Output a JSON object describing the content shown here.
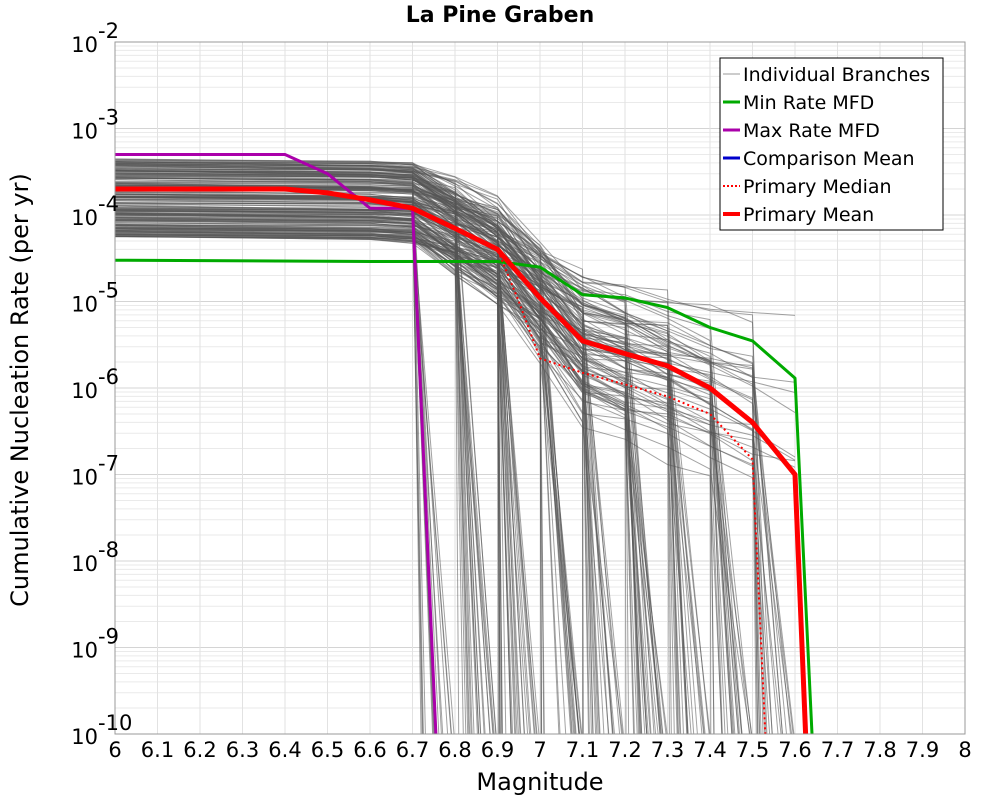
{
  "chart_data": {
    "type": "line",
    "title": "La Pine Graben",
    "xlabel": "Magnitude",
    "ylabel": "Cumulative Nucleation Rate (per yr)",
    "xlim": [
      6,
      8
    ],
    "ylim": [
      1e-10,
      0.01
    ],
    "yscale": "log",
    "grid": true,
    "legend_position": "top-right",
    "x_ticks": [
      "6",
      "6.1",
      "6.2",
      "6.3",
      "6.4",
      "6.5",
      "6.6",
      "6.7",
      "6.8",
      "6.9",
      "7",
      "7.1",
      "7.2",
      "7.3",
      "7.4",
      "7.5",
      "7.6",
      "7.7",
      "7.8",
      "7.9",
      "8"
    ],
    "y_ticks": [
      {
        "base": "10",
        "exp": "-10",
        "value": 1e-10
      },
      {
        "base": "10",
        "exp": "-9",
        "value": 1e-09
      },
      {
        "base": "10",
        "exp": "-8",
        "value": 1e-08
      },
      {
        "base": "10",
        "exp": "-7",
        "value": 1e-07
      },
      {
        "base": "10",
        "exp": "-6",
        "value": 1e-06
      },
      {
        "base": "10",
        "exp": "-5",
        "value": 1e-05
      },
      {
        "base": "10",
        "exp": "-4",
        "value": 0.0001
      },
      {
        "base": "10",
        "exp": "-3",
        "value": 0.001
      },
      {
        "base": "10",
        "exp": "-2",
        "value": 0.01
      }
    ],
    "series": [
      {
        "name": "Individual Branches",
        "color": "#555555",
        "style": "thin",
        "x": [],
        "y": []
      },
      {
        "name": "Min Rate MFD",
        "color": "#00aa00",
        "style": "solid",
        "x": [
          6.0,
          6.6,
          6.7,
          6.9,
          7.0,
          7.1,
          7.2,
          7.3,
          7.4,
          7.5,
          7.6,
          7.64
        ],
        "y": [
          3e-05,
          2.9e-05,
          2.9e-05,
          2.9e-05,
          2.5e-05,
          1.2e-05,
          1.1e-05,
          8.5e-06,
          5e-06,
          3.5e-06,
          1.3e-06,
          1e-10
        ]
      },
      {
        "name": "Max Rate MFD",
        "color": "#aa00aa",
        "style": "solid",
        "x": [
          6.0,
          6.4,
          6.5,
          6.6,
          6.7,
          6.755
        ],
        "y": [
          0.0005,
          0.0005,
          0.0003,
          0.00012,
          0.00012,
          1e-10
        ]
      },
      {
        "name": "Comparison Mean",
        "color": "#0000cc",
        "style": "solid",
        "x": [],
        "y": []
      },
      {
        "name": "Primary Median",
        "color": "#ff0000",
        "style": "dotted",
        "x": [
          6.0,
          6.4,
          6.5,
          6.6,
          6.7,
          6.8,
          6.9,
          6.95,
          7.0,
          7.1,
          7.2,
          7.3,
          7.4,
          7.5,
          7.53
        ],
        "y": [
          0.0002,
          0.0002,
          0.00018,
          0.00015,
          0.00012,
          7e-05,
          4e-05,
          1e-05,
          2.2e-06,
          1.5e-06,
          1.1e-06,
          8e-07,
          5e-07,
          1.5e-07,
          1e-10
        ]
      },
      {
        "name": "Primary Mean",
        "color": "#ff0000",
        "style": "thick",
        "x": [
          6.0,
          6.4,
          6.5,
          6.6,
          6.7,
          6.8,
          6.9,
          7.0,
          7.1,
          7.2,
          7.3,
          7.4,
          7.5,
          7.6,
          7.625
        ],
        "y": [
          0.0002,
          0.0002,
          0.00018,
          0.00015,
          0.00012,
          7e-05,
          4e-05,
          1.1e-05,
          3.5e-06,
          2.5e-06,
          1.8e-06,
          1e-06,
          4e-07,
          1e-07,
          1e-10
        ]
      }
    ]
  }
}
